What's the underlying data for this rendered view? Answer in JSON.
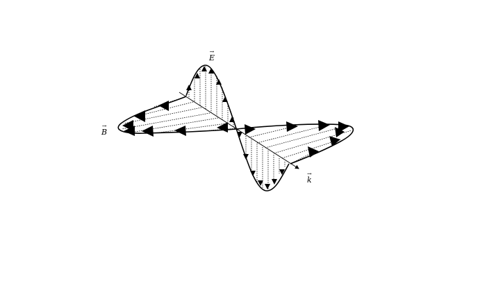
{
  "labels": {
    "e_field": "E",
    "b_field": "B",
    "wave_vector": "k"
  },
  "colors": {
    "line": "#000000",
    "background": "#ffffff"
  }
}
